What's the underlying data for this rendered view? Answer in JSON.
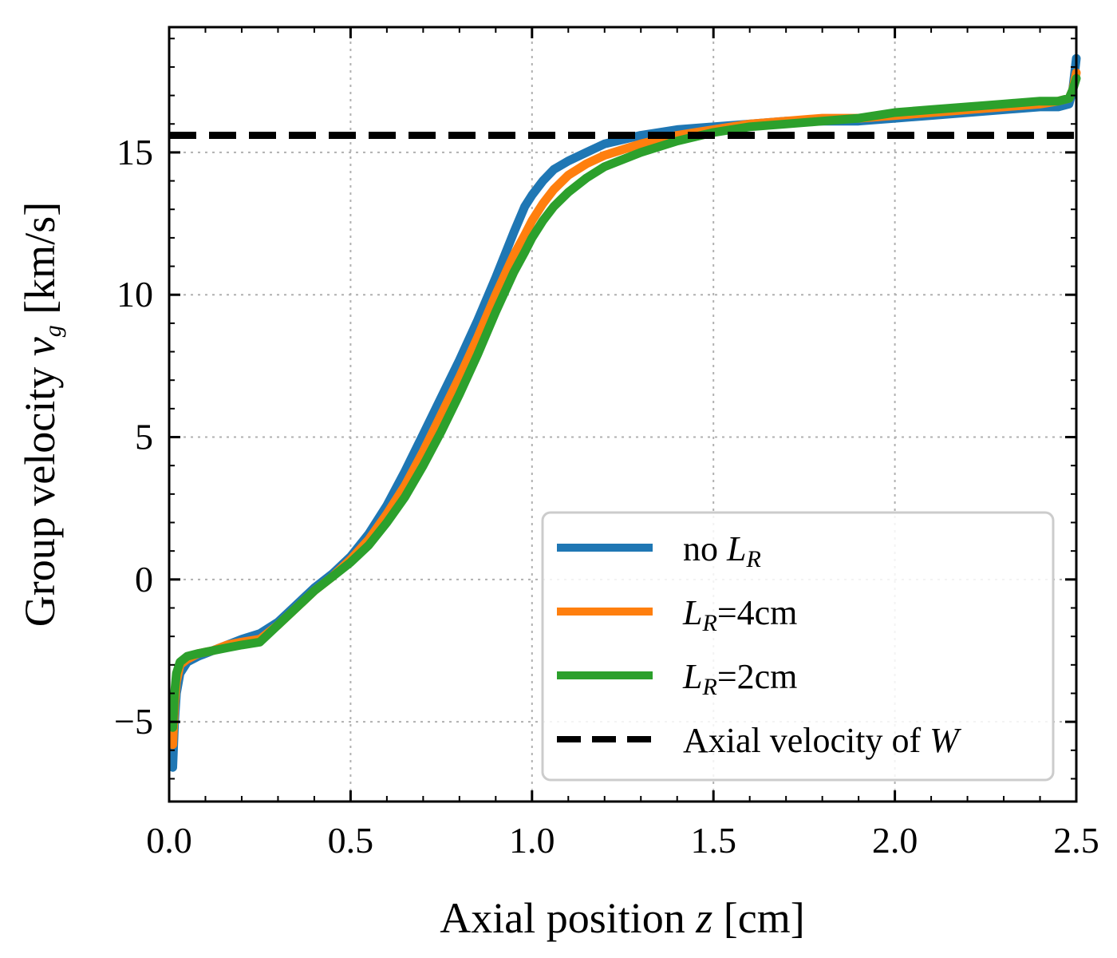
{
  "chart_data": {
    "type": "line",
    "xlabel": {
      "text": "Axial position ",
      "var": "z",
      "unit": " [cm]"
    },
    "ylabel": {
      "text": "Group velocity ",
      "var": "v",
      "sub": "g",
      "unit": " [km/s]"
    },
    "xlim": [
      0,
      2.5
    ],
    "ylim": [
      -7.8,
      19.4
    ],
    "xticks": [
      0.0,
      0.5,
      1.0,
      1.5,
      2.0,
      2.5
    ],
    "xtick_labels": [
      "0.0",
      "0.5",
      "1.0",
      "1.5",
      "2.0",
      "2.5"
    ],
    "yticks": [
      -5,
      0,
      5,
      10,
      15
    ],
    "ytick_labels": [
      "−5",
      "0",
      "5",
      "10",
      "15"
    ],
    "grid": true,
    "legend_position": "lower-right",
    "series": [
      {
        "key": "no-lr",
        "name": {
          "pre": "no ",
          "var": "L",
          "sub": "R",
          "post": ""
        },
        "color": "#1f77b4",
        "x": [
          0.01,
          0.015,
          0.02,
          0.03,
          0.05,
          0.08,
          0.12,
          0.16,
          0.2,
          0.25,
          0.3,
          0.35,
          0.4,
          0.45,
          0.5,
          0.55,
          0.6,
          0.65,
          0.7,
          0.75,
          0.8,
          0.85,
          0.9,
          0.95,
          0.98,
          1.0,
          1.03,
          1.06,
          1.1,
          1.15,
          1.2,
          1.3,
          1.4,
          1.5,
          1.6,
          1.7,
          1.8,
          1.9,
          2.0,
          2.1,
          2.2,
          2.3,
          2.4,
          2.45,
          2.48,
          2.49,
          2.5
        ],
        "y": [
          -6.6,
          -5.0,
          -4.0,
          -3.3,
          -2.9,
          -2.7,
          -2.5,
          -2.3,
          -2.1,
          -1.9,
          -1.5,
          -0.9,
          -0.3,
          0.2,
          0.8,
          1.6,
          2.6,
          3.8,
          5.1,
          6.4,
          7.7,
          9.1,
          10.6,
          12.2,
          13.1,
          13.5,
          14.0,
          14.4,
          14.7,
          15.0,
          15.3,
          15.6,
          15.8,
          15.9,
          16.0,
          16.1,
          16.1,
          16.1,
          16.2,
          16.3,
          16.4,
          16.5,
          16.6,
          16.6,
          16.7,
          17.2,
          18.3
        ]
      },
      {
        "key": "lr-4cm",
        "name": {
          "pre": "",
          "var": "L",
          "sub": "R",
          "post": "=4cm"
        },
        "color": "#ff7f0e",
        "x": [
          0.01,
          0.015,
          0.02,
          0.03,
          0.05,
          0.08,
          0.12,
          0.16,
          0.2,
          0.25,
          0.3,
          0.35,
          0.4,
          0.45,
          0.5,
          0.55,
          0.6,
          0.65,
          0.7,
          0.75,
          0.8,
          0.85,
          0.9,
          0.95,
          0.98,
          1.0,
          1.03,
          1.06,
          1.1,
          1.15,
          1.2,
          1.3,
          1.4,
          1.5,
          1.6,
          1.7,
          1.8,
          1.9,
          2.0,
          2.1,
          2.2,
          2.3,
          2.4,
          2.45,
          2.48,
          2.49,
          2.5
        ],
        "y": [
          -5.8,
          -4.4,
          -3.6,
          -3.0,
          -2.8,
          -2.6,
          -2.5,
          -2.3,
          -2.2,
          -2.1,
          -1.6,
          -1.0,
          -0.4,
          0.1,
          0.7,
          1.4,
          2.3,
          3.3,
          4.5,
          5.8,
          7.1,
          8.5,
          10.0,
          11.4,
          12.1,
          12.6,
          13.2,
          13.7,
          14.2,
          14.6,
          14.9,
          15.3,
          15.6,
          15.8,
          16.0,
          16.1,
          16.2,
          16.2,
          16.3,
          16.4,
          16.5,
          16.6,
          16.7,
          16.8,
          16.9,
          17.2,
          17.8
        ]
      },
      {
        "key": "lr-2cm",
        "name": {
          "pre": "",
          "var": "L",
          "sub": "R",
          "post": "=2cm"
        },
        "color": "#2ca02c",
        "x": [
          0.01,
          0.015,
          0.02,
          0.03,
          0.05,
          0.08,
          0.12,
          0.16,
          0.2,
          0.25,
          0.3,
          0.35,
          0.4,
          0.45,
          0.5,
          0.55,
          0.6,
          0.65,
          0.7,
          0.75,
          0.8,
          0.85,
          0.9,
          0.95,
          0.98,
          1.0,
          1.03,
          1.06,
          1.1,
          1.15,
          1.2,
          1.3,
          1.4,
          1.5,
          1.6,
          1.7,
          1.8,
          1.9,
          2.0,
          2.1,
          2.2,
          2.3,
          2.4,
          2.45,
          2.48,
          2.49,
          2.5
        ],
        "y": [
          -5.2,
          -4.0,
          -3.3,
          -2.9,
          -2.7,
          -2.6,
          -2.5,
          -2.4,
          -2.3,
          -2.2,
          -1.6,
          -1.0,
          -0.4,
          0.1,
          0.6,
          1.2,
          2.0,
          2.9,
          4.0,
          5.2,
          6.5,
          7.9,
          9.4,
          10.8,
          11.5,
          12.0,
          12.6,
          13.1,
          13.6,
          14.1,
          14.5,
          15.0,
          15.4,
          15.7,
          15.9,
          16.0,
          16.1,
          16.2,
          16.4,
          16.5,
          16.6,
          16.7,
          16.8,
          16.8,
          16.9,
          17.2,
          17.6
        ]
      }
    ],
    "reference_line": {
      "key": "axial-velocity",
      "name": {
        "pre": "Axial velocity of ",
        "var": "W",
        "sub": "",
        "post": ""
      },
      "color": "#000000",
      "y": 15.6,
      "style": "dashed"
    }
  }
}
